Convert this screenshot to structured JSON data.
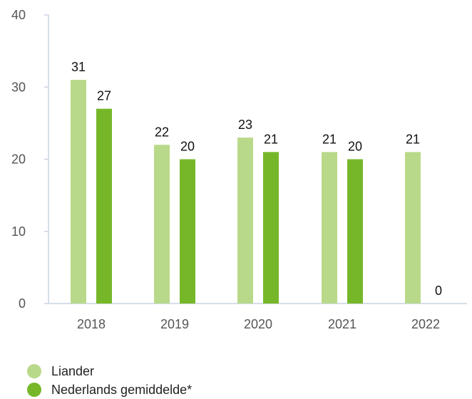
{
  "chart_data": {
    "type": "bar",
    "categories": [
      "2018",
      "2019",
      "2020",
      "2021",
      "2022"
    ],
    "series": [
      {
        "name": "Liander",
        "values": [
          31,
          22,
          23,
          21,
          21
        ],
        "color": "#b9d98a"
      },
      {
        "name": "Nederlands gemiddelde*",
        "values": [
          27,
          20,
          21,
          20,
          0
        ],
        "color": "#76b72a"
      }
    ],
    "value_labels": [
      [
        "31",
        "22",
        "23",
        "21",
        "21"
      ],
      [
        "27",
        "20",
        "21",
        "20",
        "0"
      ]
    ],
    "ylim": [
      0,
      40
    ],
    "yticks": [
      0,
      10,
      20,
      30,
      40
    ],
    "ytick_labels": [
      "0",
      "10",
      "20",
      "30",
      "40"
    ],
    "grid": false,
    "legend_position": "bottom-left"
  },
  "legend": {
    "items": [
      {
        "label": "Liander",
        "color": "#b9d98a"
      },
      {
        "label": "Nederlands gemiddelde*",
        "color": "#76b72a"
      }
    ]
  }
}
